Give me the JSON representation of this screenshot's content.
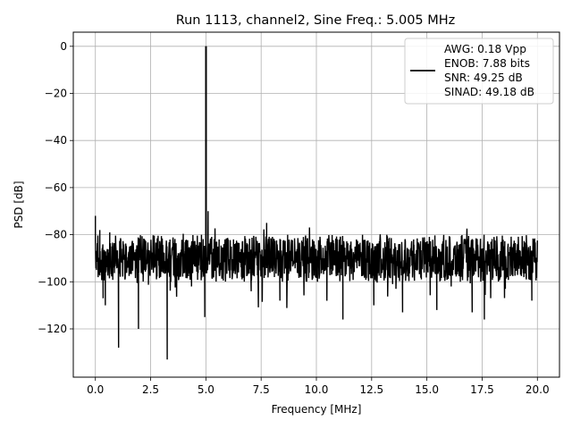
{
  "chart_data": {
    "type": "line",
    "title": "Run 1113, channel2, Sine Freq.: 5.005 MHz",
    "xlabel": "Frequency [MHz]",
    "ylabel": "PSD [dB]",
    "xlim": [
      -1.0,
      21.0
    ],
    "ylim": [
      -140.5,
      6.0
    ],
    "x_ticks": [
      0.0,
      2.5,
      5.0,
      7.5,
      10.0,
      12.5,
      15.0,
      17.5,
      20.0
    ],
    "x_tick_labels": [
      "0.0",
      "2.5",
      "5.0",
      "7.5",
      "10.0",
      "12.5",
      "15.0",
      "17.5",
      "20.0"
    ],
    "y_ticks": [
      0,
      -20,
      -40,
      -60,
      -80,
      -100,
      -120
    ],
    "y_tick_labels": [
      "0",
      "−20",
      "−40",
      "−60",
      "−80",
      "−100",
      "−120"
    ],
    "grid": true,
    "legend_position": "top-right",
    "legend": [
      "AWG: 0.18 Vpp",
      "ENOB: 7.88 bits",
      "SNR: 49.25 dB",
      "SINAD: 49.18 dB"
    ],
    "series": [
      {
        "color": "#000000",
        "noise_floor_db": -90,
        "noise_band_db": [
          -100,
          -80
        ],
        "fundamental": {
          "x": 5.005,
          "y": 0
        },
        "points": [
          [
            0.0,
            -72
          ],
          [
            0.05,
            -95
          ],
          [
            0.1,
            -84
          ],
          [
            0.15,
            -97
          ],
          [
            0.2,
            -78
          ],
          [
            0.35,
            -107
          ],
          [
            0.45,
            -110
          ],
          [
            0.65,
            -79
          ],
          [
            1.05,
            -128
          ],
          [
            1.55,
            -85
          ],
          [
            1.95,
            -120
          ],
          [
            2.4,
            -95
          ],
          [
            2.75,
            -84
          ],
          [
            3.25,
            -133
          ],
          [
            3.65,
            -98
          ],
          [
            4.05,
            -87
          ],
          [
            4.35,
            -102
          ],
          [
            4.8,
            -80
          ],
          [
            4.95,
            -115
          ],
          [
            5.005,
            0
          ],
          [
            5.1,
            -70
          ],
          [
            5.3,
            -96
          ],
          [
            5.6,
            -82
          ],
          [
            6.2,
            -97
          ],
          [
            6.5,
            -84
          ],
          [
            7.05,
            -104
          ],
          [
            7.75,
            -75
          ],
          [
            8.1,
            -98
          ],
          [
            8.35,
            -108
          ],
          [
            8.7,
            -80
          ],
          [
            9.15,
            -96
          ],
          [
            9.5,
            -86
          ],
          [
            10.05,
            -100
          ],
          [
            10.5,
            -83
          ],
          [
            11.2,
            -116
          ],
          [
            11.6,
            -87
          ],
          [
            12.05,
            -96
          ],
          [
            12.6,
            -110
          ],
          [
            13.1,
            -84
          ],
          [
            13.45,
            -101
          ],
          [
            13.9,
            -113
          ],
          [
            14.4,
            -82
          ],
          [
            14.75,
            -99
          ],
          [
            15.1,
            -85
          ],
          [
            15.45,
            -112
          ],
          [
            15.75,
            -87
          ],
          [
            16.1,
            -102
          ],
          [
            16.5,
            -84
          ],
          [
            17.05,
            -113
          ],
          [
            17.4,
            -92
          ],
          [
            17.6,
            -116
          ],
          [
            18.0,
            -86
          ],
          [
            18.55,
            -103
          ],
          [
            19.1,
            -84
          ],
          [
            19.5,
            -99
          ],
          [
            19.75,
            -108
          ],
          [
            19.9,
            -92
          ],
          [
            20.0,
            -85
          ]
        ]
      }
    ]
  }
}
